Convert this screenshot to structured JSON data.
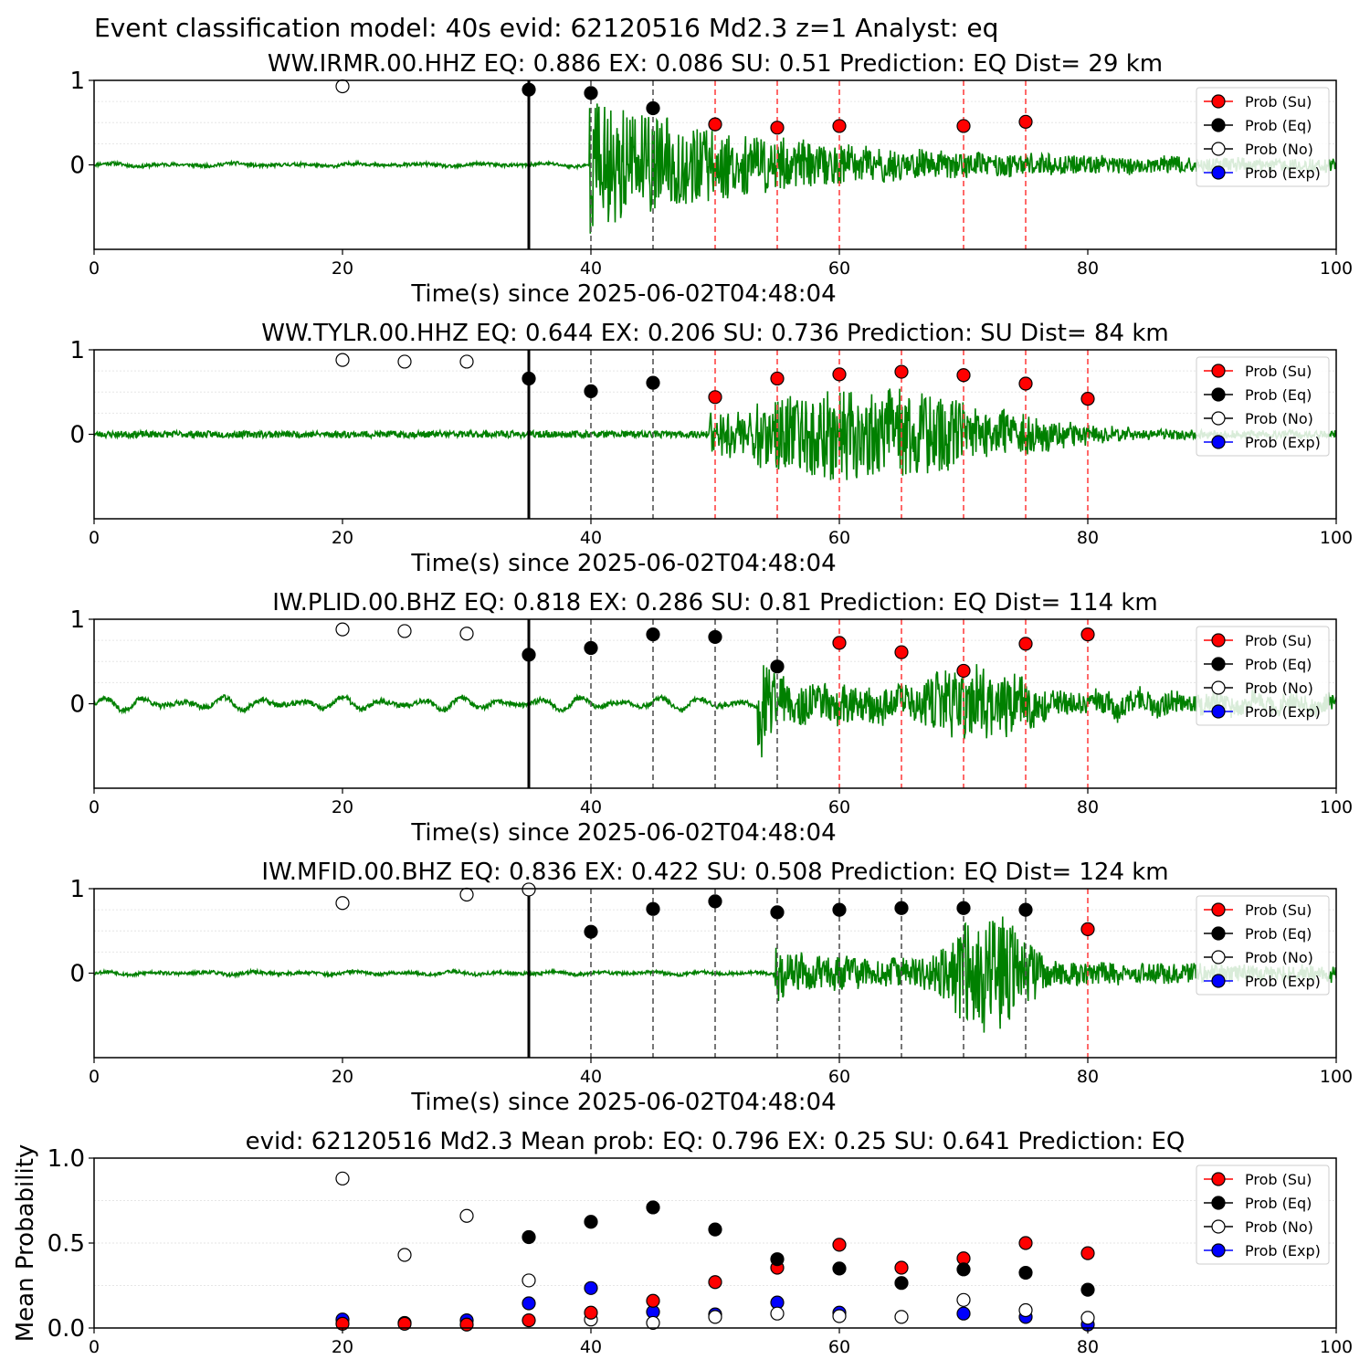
{
  "figure": {
    "suptitle": "Event classification model: 40s evid: 62120516 Md2.3 z=1 Analyst: eq"
  },
  "legend": {
    "entries": [
      {
        "label": "Prob (Su)",
        "face": "#ff0000",
        "edge": "#000000",
        "line": "#ff0000"
      },
      {
        "label": "Prob (Eq)",
        "face": "#000000",
        "edge": "#000000",
        "line": "#000000"
      },
      {
        "label": "Prob (No)",
        "face": "#ffffff",
        "edge": "#000000",
        "line": "#000000"
      },
      {
        "label": "Prob (Exp)",
        "face": "#0000ff",
        "edge": "#000000",
        "line": "#0000ff"
      }
    ]
  },
  "colors": {
    "waveform": "#008000",
    "window_start": "#000000",
    "eq_window": "#555555",
    "su_window": "#ff4444",
    "su": "#ff0000",
    "eq": "#000000",
    "no": "#ffffff",
    "exp": "#0000ff"
  },
  "chart_data": [
    {
      "type": "scatter",
      "title": "WW.IRMR.00.HHZ   EQ: 0.886  EX: 0.086  SU: 0.51   Prediction: EQ    Dist= 29 km",
      "xlabel": "Time(s) since 2025-06-02T04:48:04",
      "xlim": [
        0,
        100
      ],
      "xticks": [
        0,
        20,
        40,
        60,
        80,
        100
      ],
      "yticks": [
        {
          "value": 0,
          "label": "0"
        },
        {
          "value": 1,
          "label": "1"
        }
      ],
      "ylim": [
        -1,
        1
      ],
      "legend_position": "upper right",
      "waveform": {
        "seed": 11,
        "onset": 39.8,
        "noise": 0.02,
        "bg_period": 5,
        "bg_amp": 0.02,
        "peak": 0.75,
        "decay": 14,
        "max_extra_min": 0.95,
        "end": 100
      },
      "window_start": 35,
      "eq_windows": [
        40,
        45
      ],
      "su_windows": [
        50,
        55,
        60,
        70,
        75
      ],
      "points": {
        "no": [
          {
            "x": 20,
            "y": 0.93
          }
        ],
        "eq": [
          {
            "x": 35,
            "y": 0.89
          },
          {
            "x": 40,
            "y": 0.85
          },
          {
            "x": 45,
            "y": 0.67
          }
        ],
        "su": [
          {
            "x": 50,
            "y": 0.48
          },
          {
            "x": 55,
            "y": 0.44
          },
          {
            "x": 60,
            "y": 0.46
          },
          {
            "x": 70,
            "y": 0.46
          },
          {
            "x": 75,
            "y": 0.51
          }
        ],
        "exp": []
      }
    },
    {
      "type": "scatter",
      "title": "WW.TYLR.00.HHZ   EQ: 0.644  EX: 0.206  SU: 0.736   Prediction: SU    Dist= 84 km",
      "xlabel": "Time(s) since 2025-06-02T04:48:04",
      "xlim": [
        0,
        100
      ],
      "xticks": [
        0,
        20,
        40,
        60,
        80,
        100
      ],
      "yticks": [
        {
          "value": 0,
          "label": "0"
        },
        {
          "value": 1,
          "label": "1"
        }
      ],
      "ylim": [
        -1,
        1
      ],
      "legend_position": "upper right",
      "waveform": {
        "seed": 23,
        "onset": 49.5,
        "noise": 0.04,
        "bg_period": 0,
        "bg_amp": 0,
        "peak": 0.55,
        "decay": 0,
        "spindle_center": 62,
        "spindle_width": 14,
        "end": 100
      },
      "window_start": 35,
      "eq_windows": [
        40,
        45
      ],
      "su_windows": [
        50,
        55,
        60,
        65,
        70,
        75,
        80
      ],
      "points": {
        "no": [
          {
            "x": 20,
            "y": 0.88
          },
          {
            "x": 25,
            "y": 0.86
          },
          {
            "x": 30,
            "y": 0.86
          }
        ],
        "eq": [
          {
            "x": 35,
            "y": 0.66
          },
          {
            "x": 40,
            "y": 0.51
          },
          {
            "x": 45,
            "y": 0.61
          }
        ],
        "su": [
          {
            "x": 50,
            "y": 0.44
          },
          {
            "x": 55,
            "y": 0.66
          },
          {
            "x": 60,
            "y": 0.71
          },
          {
            "x": 65,
            "y": 0.74
          },
          {
            "x": 70,
            "y": 0.7
          },
          {
            "x": 75,
            "y": 0.6
          },
          {
            "x": 80,
            "y": 0.42
          }
        ],
        "exp": []
      }
    },
    {
      "type": "scatter",
      "title": "IW.PLID.00.BHZ   EQ: 0.818  EX: 0.286  SU: 0.81   Prediction: EQ    Dist= 114 km",
      "xlabel": "Time(s) since 2025-06-02T04:48:04",
      "xlim": [
        0,
        100
      ],
      "xticks": [
        0,
        20,
        40,
        60,
        80,
        100
      ],
      "yticks": [
        {
          "value": 0,
          "label": "0"
        },
        {
          "value": 1,
          "label": "1"
        }
      ],
      "ylim": [
        -1,
        1
      ],
      "legend_position": "upper right",
      "waveform": {
        "seed": 37,
        "onset": 53.4,
        "noise": 0.03,
        "bg_period": 3.2,
        "bg_amp": 0.08,
        "peak": 0.8,
        "decay": 0,
        "second_center": 71,
        "second_width": 6,
        "second_amp": 0.45,
        "body_amp": 0.22,
        "end": 100
      },
      "window_start": 35,
      "eq_windows": [
        40,
        45,
        50,
        55
      ],
      "su_windows": [
        60,
        65,
        70,
        75,
        80
      ],
      "points": {
        "no": [
          {
            "x": 20,
            "y": 0.88
          },
          {
            "x": 25,
            "y": 0.86
          },
          {
            "x": 30,
            "y": 0.83
          }
        ],
        "eq": [
          {
            "x": 35,
            "y": 0.58
          },
          {
            "x": 40,
            "y": 0.66
          },
          {
            "x": 45,
            "y": 0.82
          },
          {
            "x": 50,
            "y": 0.79
          },
          {
            "x": 55,
            "y": 0.44
          }
        ],
        "su": [
          {
            "x": 60,
            "y": 0.72
          },
          {
            "x": 65,
            "y": 0.61
          },
          {
            "x": 70,
            "y": 0.39
          },
          {
            "x": 75,
            "y": 0.71
          },
          {
            "x": 80,
            "y": 0.82
          }
        ],
        "exp": []
      }
    },
    {
      "type": "scatter",
      "title": "IW.MFID.00.BHZ   EQ: 0.836  EX: 0.422  SU: 0.508   Prediction: EQ    Dist= 124 km",
      "xlabel": "Time(s) since 2025-06-02T04:48:04",
      "xlim": [
        0,
        100
      ],
      "xticks": [
        0,
        20,
        40,
        60,
        80,
        100
      ],
      "yticks": [
        {
          "value": 0,
          "label": "0"
        },
        {
          "value": 1,
          "label": "1"
        }
      ],
      "ylim": [
        -1,
        1
      ],
      "legend_position": "upper right",
      "waveform": {
        "seed": 53,
        "onset": 54.8,
        "noise": 0.02,
        "bg_period": 4,
        "bg_amp": 0.02,
        "peak": 0.45,
        "decay": 0,
        "second_center": 72,
        "second_width": 4,
        "second_amp": 0.75,
        "body_amp": 0.18,
        "end": 100
      },
      "window_start": 35,
      "eq_windows": [
        40,
        45,
        50,
        55,
        60,
        65,
        70,
        75
      ],
      "su_windows": [
        80
      ],
      "points": {
        "no": [
          {
            "x": 20,
            "y": 0.83
          },
          {
            "x": 30,
            "y": 0.93
          },
          {
            "x": 35,
            "y": 0.99
          }
        ],
        "eq": [
          {
            "x": 40,
            "y": 0.49
          },
          {
            "x": 45,
            "y": 0.76
          },
          {
            "x": 50,
            "y": 0.85
          },
          {
            "x": 55,
            "y": 0.72
          },
          {
            "x": 60,
            "y": 0.75
          },
          {
            "x": 65,
            "y": 0.77
          },
          {
            "x": 70,
            "y": 0.77
          },
          {
            "x": 75,
            "y": 0.75
          }
        ],
        "su": [
          {
            "x": 80,
            "y": 0.52
          }
        ],
        "exp": []
      }
    },
    {
      "type": "scatter",
      "title": "evid: 62120516  Md2.3   Mean prob:   EQ: 0.796  EX: 0.25  SU: 0.641   Prediction: EQ",
      "xlabel": "",
      "ylabel": "Mean Probability",
      "xlim": [
        0,
        100
      ],
      "xticks": [
        0,
        20,
        40,
        60,
        80,
        100
      ],
      "yticks": [
        {
          "value": 0,
          "label": "0.0"
        },
        {
          "value": 0.5,
          "label": "0.5"
        },
        {
          "value": 1,
          "label": "1.0"
        }
      ],
      "ylim": [
        0,
        1
      ],
      "legend_position": "upper right",
      "grid": true,
      "points": {
        "exp": [
          {
            "x": 20,
            "y": 0.05
          },
          {
            "x": 25,
            "y": 0.03
          },
          {
            "x": 30,
            "y": 0.045
          },
          {
            "x": 35,
            "y": 0.145
          },
          {
            "x": 40,
            "y": 0.235
          },
          {
            "x": 45,
            "y": 0.095
          },
          {
            "x": 50,
            "y": 0.08
          },
          {
            "x": 55,
            "y": 0.15
          },
          {
            "x": 60,
            "y": 0.09
          },
          {
            "x": 70,
            "y": 0.085
          },
          {
            "x": 75,
            "y": 0.065
          },
          {
            "x": 80,
            "y": 0.02
          }
        ],
        "no": [
          {
            "x": 20,
            "y": 0.88
          },
          {
            "x": 25,
            "y": 0.43
          },
          {
            "x": 30,
            "y": 0.66
          },
          {
            "x": 35,
            "y": 0.28
          },
          {
            "x": 40,
            "y": 0.05
          },
          {
            "x": 45,
            "y": 0.03
          },
          {
            "x": 50,
            "y": 0.065
          },
          {
            "x": 55,
            "y": 0.085
          },
          {
            "x": 60,
            "y": 0.07
          },
          {
            "x": 65,
            "y": 0.065
          },
          {
            "x": 70,
            "y": 0.165
          },
          {
            "x": 75,
            "y": 0.105
          },
          {
            "x": 80,
            "y": 0.06
          }
        ],
        "su": [
          {
            "x": 20,
            "y": 0.025
          },
          {
            "x": 25,
            "y": 0.025
          },
          {
            "x": 30,
            "y": 0.02
          },
          {
            "x": 35,
            "y": 0.045
          },
          {
            "x": 40,
            "y": 0.09
          },
          {
            "x": 45,
            "y": 0.16
          },
          {
            "x": 50,
            "y": 0.27
          },
          {
            "x": 55,
            "y": 0.355
          },
          {
            "x": 60,
            "y": 0.49
          },
          {
            "x": 65,
            "y": 0.355
          },
          {
            "x": 70,
            "y": 0.41
          },
          {
            "x": 75,
            "y": 0.5
          },
          {
            "x": 80,
            "y": 0.44
          }
        ],
        "eq": [
          {
            "x": 35,
            "y": 0.535
          },
          {
            "x": 40,
            "y": 0.625
          },
          {
            "x": 45,
            "y": 0.71
          },
          {
            "x": 50,
            "y": 0.58
          },
          {
            "x": 55,
            "y": 0.405
          },
          {
            "x": 60,
            "y": 0.35
          },
          {
            "x": 65,
            "y": 0.265
          },
          {
            "x": 70,
            "y": 0.345
          },
          {
            "x": 75,
            "y": 0.325
          },
          {
            "x": 80,
            "y": 0.225
          }
        ]
      }
    }
  ]
}
